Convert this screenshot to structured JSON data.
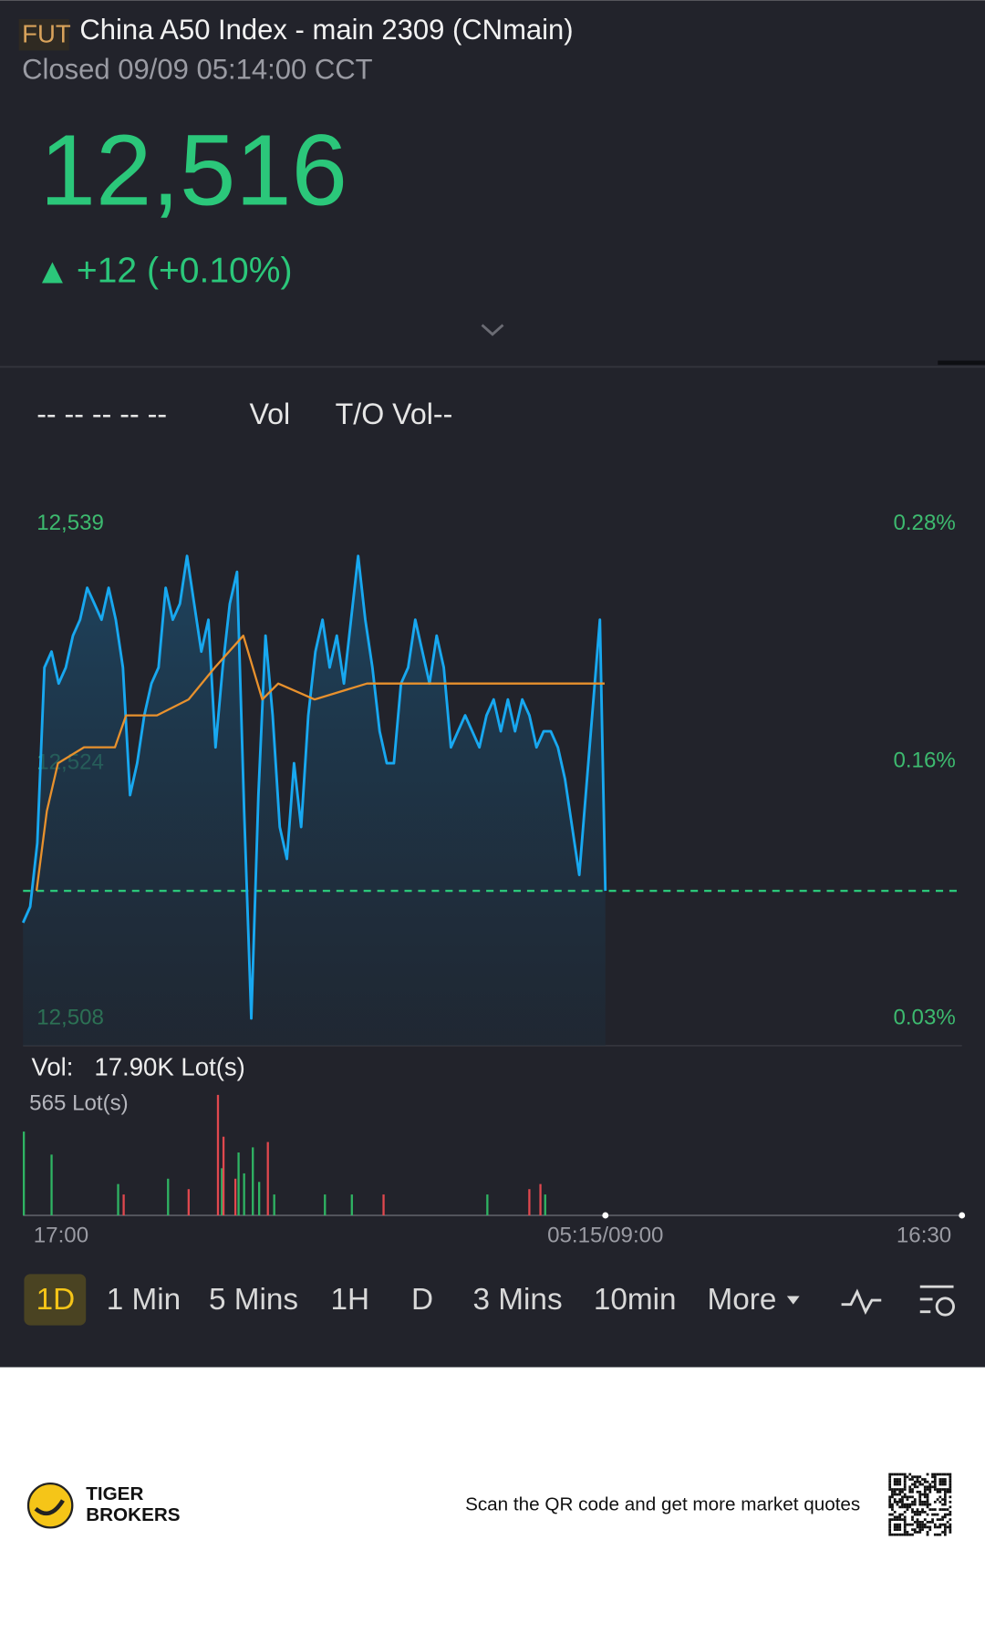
{
  "header": {
    "badge": "FUT",
    "title": "China A50 Index - main 2309 (CNmain)",
    "status": "Closed 09/09 05:14:00 CCT",
    "price": "12,516",
    "change": "+12 (+0.10%)"
  },
  "indicators": [
    "-- -- -- -- --",
    "Vol",
    "T/O Vol--"
  ],
  "chart_data": [
    {
      "type": "line",
      "xlim": [
        0,
        1185
      ],
      "ylim": [
        12508,
        12539
      ],
      "yticks": [
        {
          "value": 12539,
          "label": "12,539"
        },
        {
          "value": 12524,
          "label": "12,524"
        },
        {
          "value": 12508,
          "label": "12,508"
        }
      ],
      "y2lim": [
        0.03,
        0.28
      ],
      "y2ticks": [
        {
          "value": 0.28,
          "label": "0.28%"
        },
        {
          "value": 0.16,
          "label": "0.16%"
        },
        {
          "value": 0.03,
          "label": "0.03%"
        }
      ],
      "reference_line": 12516,
      "series": [
        {
          "color": "#18a8f0",
          "x": [
            0,
            9,
            18,
            27,
            36,
            45,
            54,
            63,
            72,
            81,
            90,
            99,
            108,
            117,
            126,
            135,
            144,
            153,
            162,
            171,
            180,
            189,
            198,
            207,
            216,
            225,
            234,
            243,
            252,
            261,
            270,
            279,
            288,
            297,
            306,
            315,
            324,
            333,
            342,
            351,
            360,
            369,
            378,
            387,
            396,
            405,
            414,
            423,
            432,
            441,
            450,
            459,
            468,
            477,
            486,
            495,
            504,
            513,
            522,
            531,
            540,
            549,
            558,
            567,
            576,
            585,
            594,
            603,
            612,
            621,
            630,
            639,
            648,
            657,
            666,
            675,
            684,
            693,
            702,
            728,
            735
          ],
          "values": [
            12514,
            12515,
            12519,
            12530,
            12531,
            12529,
            12530,
            12532,
            12533,
            12535,
            12534,
            12533,
            12535,
            12533,
            12530,
            12522,
            12524,
            12527,
            12529,
            12530,
            12535,
            12533,
            12534,
            12537,
            12534,
            12531,
            12533,
            12525,
            12530,
            12534,
            12536,
            12521,
            12508,
            12522,
            12532,
            12527,
            12520,
            12518,
            12524,
            12520,
            12527,
            12531,
            12533,
            12530,
            12532,
            12529,
            12533,
            12537,
            12533,
            12530,
            12526,
            12524,
            12524,
            12529,
            12530,
            12533,
            12531,
            12529,
            12532,
            12530,
            12525,
            12526,
            12527,
            12526,
            12525,
            12527,
            12528,
            12526,
            12528,
            12526,
            12528,
            12527,
            12525,
            12526,
            12526,
            12525,
            12523,
            12520,
            12517,
            12533,
            12516
          ]
        },
        {
          "color": "#e8912d",
          "x": [
            17,
            30,
            44,
            77,
            116,
            130,
            169,
            209,
            242,
            278,
            302,
            322,
            368,
            434,
            545,
            734
          ],
          "values": [
            12516,
            12521,
            12524,
            12525,
            12525,
            12527,
            12527,
            12528,
            12530,
            12532,
            12528,
            12529,
            12528,
            12529,
            12529,
            12529
          ]
        }
      ]
    },
    {
      "type": "bar",
      "label": "Vol:",
      "total": "17.90K Lot(s)",
      "xlim": [
        0,
        1185
      ],
      "ylim": [
        0,
        565
      ],
      "yticks": [
        {
          "value": 565,
          "label": "565 Lot(s)"
        }
      ],
      "xticks": [
        {
          "value": 0,
          "label": "17:00"
        },
        {
          "value": 735,
          "label": "05:15/09:00"
        },
        {
          "value": 1185,
          "label": "16:30"
        }
      ],
      "series": [
        {
          "color": "#2fb463",
          "x": [
            1,
            36,
            120,
            183,
            251,
            272,
            279,
            290,
            298,
            317,
            381,
            415,
            586,
            659
          ],
          "values": [
            393,
            285,
            147,
            172,
            221,
            295,
            197,
            319,
            157,
            98,
            98,
            98,
            98,
            98
          ]
        },
        {
          "color": "#e0484e",
          "x": [
            127,
            209,
            246,
            253,
            268,
            309,
            455,
            639,
            653
          ],
          "values": [
            98,
            123,
            565,
            369,
            172,
            344,
            98,
            123,
            147
          ]
        }
      ]
    }
  ],
  "tabs": [
    "1D",
    "1 Min",
    "5 Mins",
    "1H",
    "D",
    "3 Mins",
    "10min",
    "More"
  ],
  "footer": {
    "brand": [
      "TIGER",
      "BROKERS"
    ],
    "scan": "Scan the QR code and get more market quotes"
  }
}
